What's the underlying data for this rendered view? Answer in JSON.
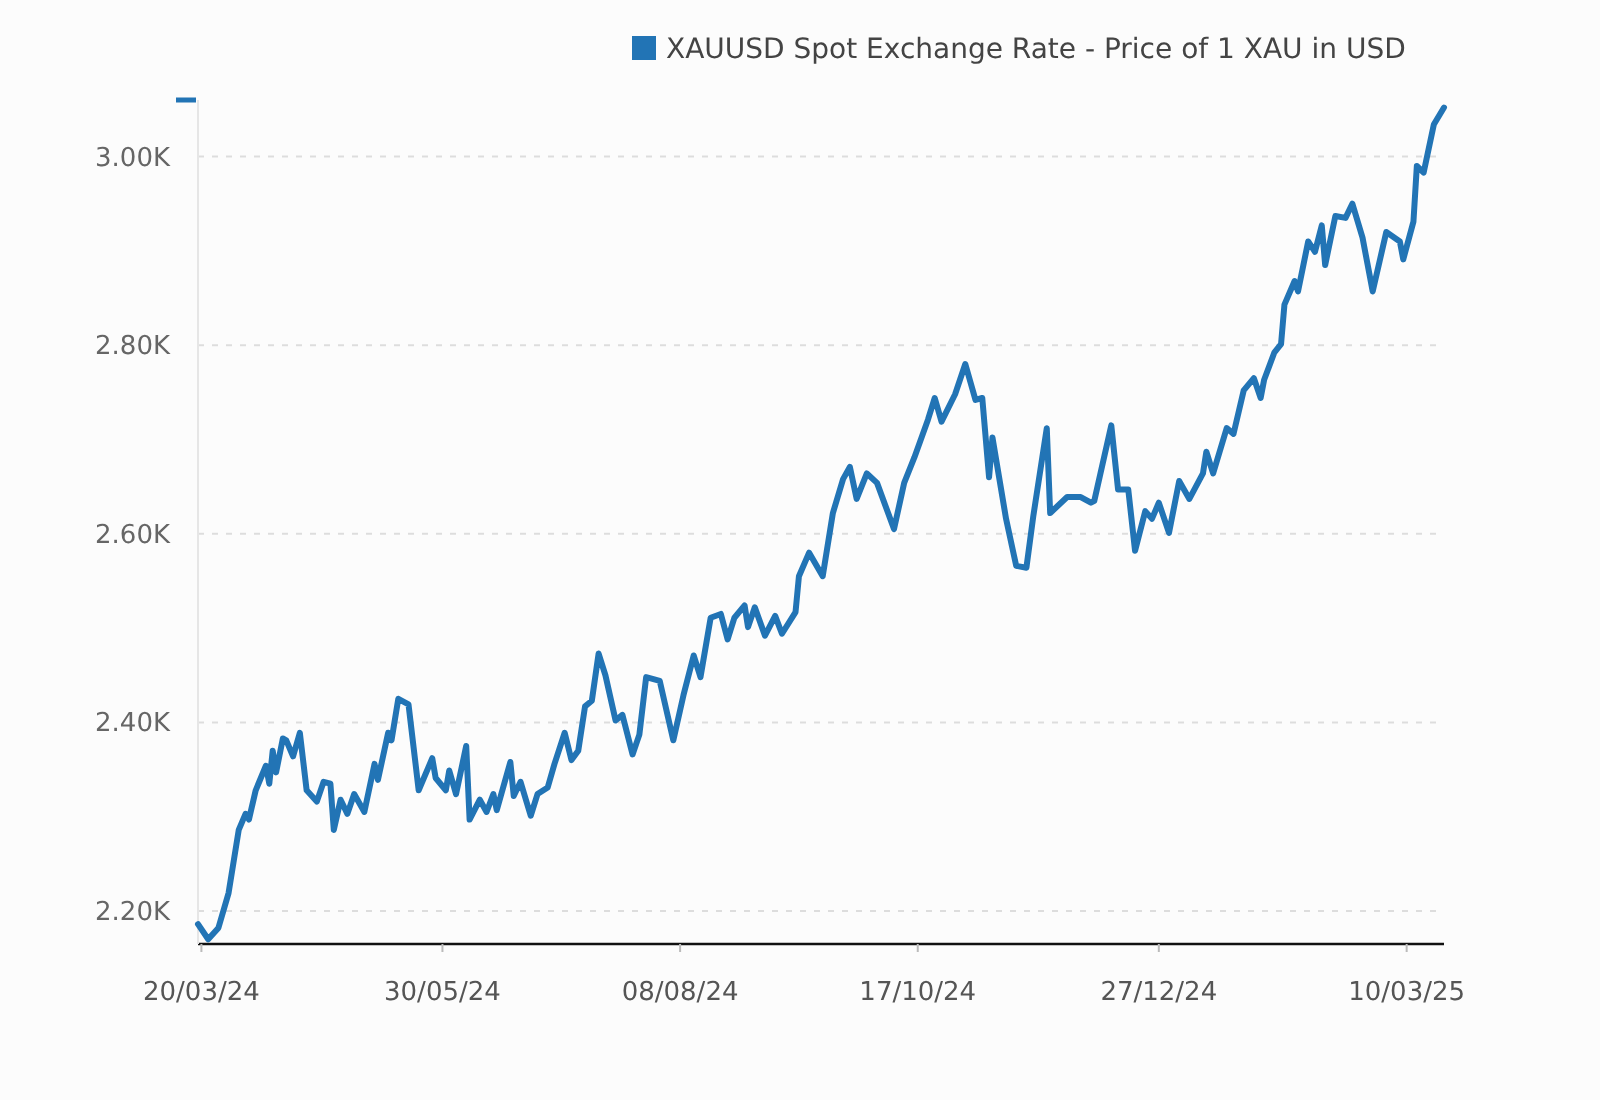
{
  "chart_data": {
    "type": "line",
    "legend": "top",
    "grid": "y",
    "marker": "none",
    "line_style": "solid",
    "xlim": [
      "2024-03-19",
      "2025-03-21"
    ],
    "xticks": [
      {
        "value": "2024-03-20",
        "label": "20/03/24"
      },
      {
        "value": "2024-05-30",
        "label": "30/05/24"
      },
      {
        "value": "2024-08-08",
        "label": "08/08/24"
      },
      {
        "value": "2024-10-17",
        "label": "17/10/24"
      },
      {
        "value": "2024-12-27",
        "label": "27/12/24"
      },
      {
        "value": "2025-03-10",
        "label": "10/03/25"
      }
    ],
    "ylim": [
      2165,
      3060
    ],
    "yticks": [
      {
        "value": 2200,
        "label": "2.20K"
      },
      {
        "value": 2400,
        "label": "2.40K"
      },
      {
        "value": 2600,
        "label": "2.60K"
      },
      {
        "value": 2800,
        "label": "2.80K"
      },
      {
        "value": 3000,
        "label": "3.00K"
      }
    ],
    "x": [
      "2024-03-19",
      "2024-03-22",
      "2024-03-25",
      "2024-03-28",
      "2024-03-31",
      "2024-04-02",
      "2024-04-03",
      "2024-04-05",
      "2024-04-08",
      "2024-04-09",
      "2024-04-10",
      "2024-04-11",
      "2024-04-13",
      "2024-04-14",
      "2024-04-16",
      "2024-04-18",
      "2024-04-20",
      "2024-04-23",
      "2024-04-25",
      "2024-04-27",
      "2024-04-28",
      "2024-04-30",
      "2024-05-02",
      "2024-05-04",
      "2024-05-07",
      "2024-05-10",
      "2024-05-11",
      "2024-05-14",
      "2024-05-15",
      "2024-05-17",
      "2024-05-20",
      "2024-05-23",
      "2024-05-27",
      "2024-05-28",
      "2024-05-31",
      "2024-06-01",
      "2024-06-03",
      "2024-06-06",
      "2024-06-07",
      "2024-06-10",
      "2024-06-12",
      "2024-06-14",
      "2024-06-15",
      "2024-06-19",
      "2024-06-20",
      "2024-06-22",
      "2024-06-25",
      "2024-06-27",
      "2024-06-30",
      "2024-07-02",
      "2024-07-05",
      "2024-07-07",
      "2024-07-09",
      "2024-07-11",
      "2024-07-13",
      "2024-07-15",
      "2024-07-17",
      "2024-07-20",
      "2024-07-22",
      "2024-07-25",
      "2024-07-27",
      "2024-07-29",
      "2024-08-02",
      "2024-08-06",
      "2024-08-09",
      "2024-08-12",
      "2024-08-14",
      "2024-08-17",
      "2024-08-20",
      "2024-08-22",
      "2024-08-24",
      "2024-08-27",
      "2024-08-28",
      "2024-08-30",
      "2024-09-02",
      "2024-09-05",
      "2024-09-07",
      "2024-09-11",
      "2024-09-12",
      "2024-09-15",
      "2024-09-19",
      "2024-09-22",
      "2024-09-25",
      "2024-09-27",
      "2024-09-29",
      "2024-10-02",
      "2024-10-05",
      "2024-10-10",
      "2024-10-13",
      "2024-10-16",
      "2024-10-20",
      "2024-10-22",
      "2024-10-24",
      "2024-10-28",
      "2024-10-31",
      "2024-11-03",
      "2024-11-05",
      "2024-11-07",
      "2024-11-08",
      "2024-11-12",
      "2024-11-15",
      "2024-11-18",
      "2024-11-20",
      "2024-11-24",
      "2024-11-25",
      "2024-11-30",
      "2024-12-04",
      "2024-12-07",
      "2024-12-08",
      "2024-12-13",
      "2024-12-15",
      "2024-12-18",
      "2024-12-20",
      "2024-12-23",
      "2024-12-25",
      "2024-12-27",
      "2024-12-30",
      "2025-01-02",
      "2025-01-05",
      "2025-01-09",
      "2025-01-10",
      "2025-01-12",
      "2025-01-16",
      "2025-01-18",
      "2025-01-21",
      "2025-01-24",
      "2025-01-26",
      "2025-01-27",
      "2025-01-30",
      "2025-02-01",
      "2025-02-02",
      "2025-02-05",
      "2025-02-06",
      "2025-02-09",
      "2025-02-11",
      "2025-02-13",
      "2025-02-14",
      "2025-02-17",
      "2025-02-20",
      "2025-02-22",
      "2025-02-25",
      "2025-02-28",
      "2025-03-04",
      "2025-03-08",
      "2025-03-09",
      "2025-03-12",
      "2025-03-13",
      "2025-03-15",
      "2025-03-18",
      "2025-03-21"
    ],
    "series": [
      {
        "name": "XAUUSD Spot Exchange Rate - Price of 1 XAU in USD",
        "color": "#2274b5",
        "values": [
          2186,
          2170,
          2182,
          2219,
          2286,
          2303,
          2297,
          2328,
          2354,
          2335,
          2370,
          2347,
          2383,
          2381,
          2364,
          2389,
          2328,
          2316,
          2337,
          2335,
          2286,
          2318,
          2303,
          2324,
          2305,
          2356,
          2339,
          2389,
          2381,
          2425,
          2419,
          2328,
          2362,
          2341,
          2328,
          2349,
          2324,
          2375,
          2297,
          2318,
          2305,
          2324,
          2307,
          2358,
          2322,
          2337,
          2301,
          2324,
          2331,
          2356,
          2389,
          2360,
          2370,
          2417,
          2423,
          2473,
          2450,
          2402,
          2408,
          2366,
          2387,
          2448,
          2444,
          2381,
          2429,
          2471,
          2448,
          2511,
          2515,
          2488,
          2511,
          2524,
          2501,
          2522,
          2492,
          2513,
          2494,
          2517,
          2555,
          2580,
          2555,
          2622,
          2658,
          2671,
          2637,
          2664,
          2654,
          2605,
          2654,
          2681,
          2721,
          2744,
          2719,
          2748,
          2780,
          2742,
          2744,
          2660,
          2702,
          2616,
          2566,
          2564,
          2618,
          2712,
          2622,
          2639,
          2639,
          2633,
          2635,
          2715,
          2647,
          2647,
          2582,
          2624,
          2616,
          2633,
          2601,
          2656,
          2637,
          2664,
          2687,
          2664,
          2712,
          2706,
          2752,
          2765,
          2744,
          2763,
          2792,
          2801,
          2843,
          2868,
          2857,
          2910,
          2899,
          2927,
          2885,
          2937,
          2935,
          2950,
          2914,
          2857,
          2920,
          2910,
          2891,
          2931,
          2990,
          2983,
          3034,
          3052
        ]
      }
    ]
  }
}
